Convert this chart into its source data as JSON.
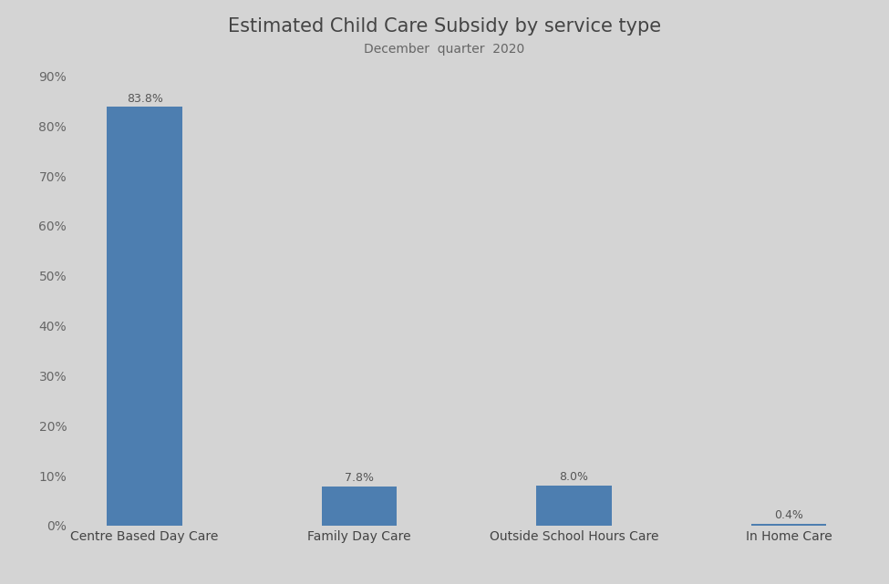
{
  "title": "Estimated Child Care Subsidy by service type",
  "subtitle": "December  quarter  2020",
  "categories": [
    "Centre Based Day Care",
    "Family Day Care",
    "Outside School Hours Care",
    "In Home Care"
  ],
  "values": [
    83.8,
    7.8,
    8.0,
    0.4
  ],
  "bar_color": "#4d7eb0",
  "background_color": "#d4d4d4",
  "ylim": [
    0,
    90
  ],
  "yticks": [
    0,
    10,
    20,
    30,
    40,
    50,
    60,
    70,
    80,
    90
  ],
  "ytick_labels": [
    "0%",
    "10%",
    "20%",
    "30%",
    "40%",
    "50%",
    "60%",
    "70%",
    "80%",
    "90%"
  ],
  "title_fontsize": 15,
  "subtitle_fontsize": 10,
  "label_fontsize": 10,
  "tick_label_fontsize": 10,
  "annotation_fontsize": 9,
  "bar_width": 0.35,
  "title_color": "#444444",
  "subtitle_color": "#666666",
  "tick_label_color": "#666666",
  "annotation_color": "#555555",
  "xlabel_color": "#444444"
}
